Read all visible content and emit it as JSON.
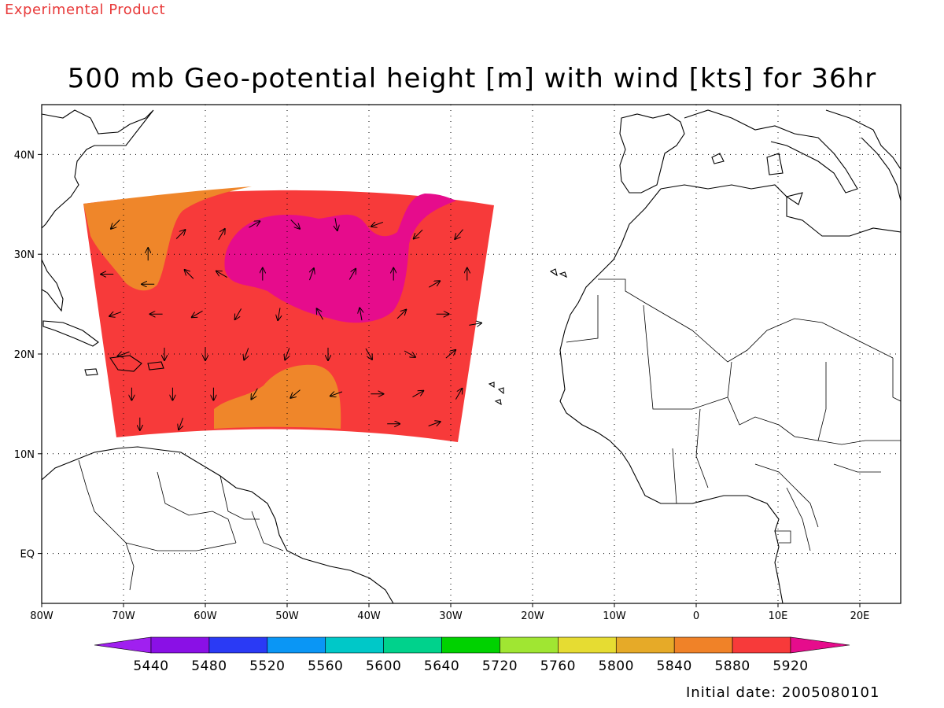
{
  "header": {
    "experimental_label": "Experimental Product",
    "title": "500 mb Geo-potential height [m] with wind [kts] for 36hr"
  },
  "footer": {
    "initial_date": "Initial date: 2005080101"
  },
  "map": {
    "lon_range": [
      -80,
      25
    ],
    "lat_range": [
      -5,
      45
    ],
    "gridlines": "dotted",
    "lon_ticks": [
      {
        "value": -80,
        "label": "80W"
      },
      {
        "value": -70,
        "label": "70W"
      },
      {
        "value": -60,
        "label": "60W"
      },
      {
        "value": -50,
        "label": "50W"
      },
      {
        "value": -40,
        "label": "40W"
      },
      {
        "value": -30,
        "label": "30W"
      },
      {
        "value": -20,
        "label": "20W"
      },
      {
        "value": -10,
        "label": "10W"
      },
      {
        "value": 0,
        "label": "0"
      },
      {
        "value": 10,
        "label": "10E"
      },
      {
        "value": 20,
        "label": "20E"
      }
    ],
    "lat_ticks": [
      {
        "value": 40,
        "label": "40N"
      },
      {
        "value": 30,
        "label": "30N"
      },
      {
        "value": 20,
        "label": "20N"
      },
      {
        "value": 10,
        "label": "10N"
      },
      {
        "value": 0,
        "label": "EQ"
      }
    ],
    "field_domain": {
      "lon_west": -75,
      "lon_east": -25,
      "lat_south": 12,
      "lat_north": 35
    },
    "regions": {
      "background_5880_color": "#f73a3a",
      "orange_5840_color": "#ef862a",
      "magenta_5920_color": "#e60c8c"
    },
    "wind_arrows": [
      {
        "lon": -71,
        "lat": 33,
        "dir": 225
      },
      {
        "lon": -67,
        "lat": 30,
        "dir": 90
      },
      {
        "lon": -63,
        "lat": 32,
        "dir": 45
      },
      {
        "lon": -58,
        "lat": 32,
        "dir": 60
      },
      {
        "lon": -54,
        "lat": 33,
        "dir": 30
      },
      {
        "lon": -49,
        "lat": 33,
        "dir": 315
      },
      {
        "lon": -44,
        "lat": 33,
        "dir": 280
      },
      {
        "lon": -39,
        "lat": 33,
        "dir": 200
      },
      {
        "lon": -34,
        "lat": 32,
        "dir": 225
      },
      {
        "lon": -29,
        "lat": 32,
        "dir": 230
      },
      {
        "lon": -72,
        "lat": 28,
        "dir": 180
      },
      {
        "lon": -67,
        "lat": 27,
        "dir": 180
      },
      {
        "lon": -62,
        "lat": 28,
        "dir": 135
      },
      {
        "lon": -58,
        "lat": 28,
        "dir": 150
      },
      {
        "lon": -53,
        "lat": 28,
        "dir": 90
      },
      {
        "lon": -47,
        "lat": 28,
        "dir": 70
      },
      {
        "lon": -42,
        "lat": 28,
        "dir": 60
      },
      {
        "lon": -37,
        "lat": 28,
        "dir": 90
      },
      {
        "lon": -32,
        "lat": 27,
        "dir": 30
      },
      {
        "lon": -28,
        "lat": 28,
        "dir": 90
      },
      {
        "lon": -71,
        "lat": 24,
        "dir": 200
      },
      {
        "lon": -66,
        "lat": 24,
        "dir": 180
      },
      {
        "lon": -61,
        "lat": 24,
        "dir": 210
      },
      {
        "lon": -56,
        "lat": 24,
        "dir": 240
      },
      {
        "lon": -51,
        "lat": 24,
        "dir": 260
      },
      {
        "lon": -46,
        "lat": 24,
        "dir": 120
      },
      {
        "lon": -41,
        "lat": 24,
        "dir": 100
      },
      {
        "lon": -36,
        "lat": 24,
        "dir": 45
      },
      {
        "lon": -31,
        "lat": 24,
        "dir": 0
      },
      {
        "lon": -27,
        "lat": 23,
        "dir": 10
      },
      {
        "lon": -70,
        "lat": 20,
        "dir": 200
      },
      {
        "lon": -65,
        "lat": 20,
        "dir": 270
      },
      {
        "lon": -60,
        "lat": 20,
        "dir": 270
      },
      {
        "lon": -55,
        "lat": 20,
        "dir": 250
      },
      {
        "lon": -50,
        "lat": 20,
        "dir": 250
      },
      {
        "lon": -45,
        "lat": 20,
        "dir": 270
      },
      {
        "lon": -40,
        "lat": 20,
        "dir": 300
      },
      {
        "lon": -35,
        "lat": 20,
        "dir": 330
      },
      {
        "lon": -30,
        "lat": 20,
        "dir": 40
      },
      {
        "lon": -69,
        "lat": 16,
        "dir": 270
      },
      {
        "lon": -64,
        "lat": 16,
        "dir": 270
      },
      {
        "lon": -59,
        "lat": 16,
        "dir": 270
      },
      {
        "lon": -54,
        "lat": 16,
        "dir": 240
      },
      {
        "lon": -49,
        "lat": 16,
        "dir": 220
      },
      {
        "lon": -44,
        "lat": 16,
        "dir": 200
      },
      {
        "lon": -39,
        "lat": 16,
        "dir": 0
      },
      {
        "lon": -34,
        "lat": 16,
        "dir": 30
      },
      {
        "lon": -29,
        "lat": 16,
        "dir": 60
      },
      {
        "lon": -68,
        "lat": 13,
        "dir": 270
      },
      {
        "lon": -63,
        "lat": 13,
        "dir": 250
      },
      {
        "lon": -37,
        "lat": 13,
        "dir": 0
      },
      {
        "lon": -32,
        "lat": 13,
        "dir": 20
      }
    ]
  },
  "colorbar": {
    "levels": [
      "5440",
      "5480",
      "5520",
      "5560",
      "5600",
      "5640",
      "5720",
      "5760",
      "5800",
      "5840",
      "5880",
      "5920"
    ],
    "colors": [
      "#a020f0",
      "#8a10e6",
      "#2a3af5",
      "#0a96f5",
      "#00c8c8",
      "#00d28c",
      "#00d200",
      "#a0e632",
      "#e6dc32",
      "#e6aa28",
      "#f08228",
      "#f73a3a",
      "#e60c8c"
    ]
  }
}
